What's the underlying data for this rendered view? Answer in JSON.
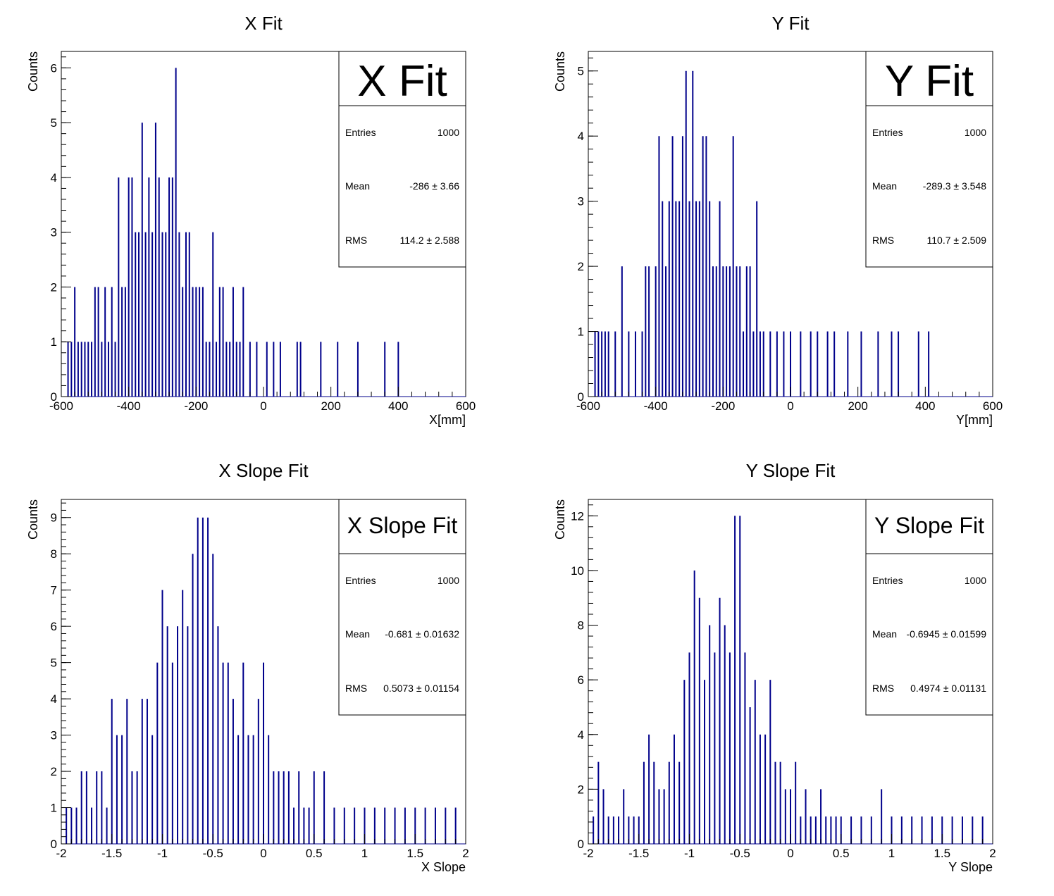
{
  "colors": {
    "histogram": "#00008b",
    "frame": "#000000",
    "background": "#ffffff"
  },
  "chart_data": [
    {
      "type": "bar",
      "title": "X Fit",
      "xlabel": "X[mm]",
      "ylabel": "Counts",
      "xlim": [
        -600,
        600
      ],
      "ylim": [
        0,
        6.3
      ],
      "xticks": [
        -600,
        -400,
        -200,
        0,
        200,
        400,
        600
      ],
      "yticks": [
        0,
        1,
        2,
        3,
        4,
        5,
        6
      ],
      "stats": {
        "name": "X Fit",
        "entries": "1000",
        "mean": "-286",
        "mean_err": "3.66",
        "rms": "114.2",
        "rms_err": "2.588"
      },
      "x": [
        -580,
        -570,
        -560,
        -550,
        -540,
        -530,
        -520,
        -510,
        -500,
        -490,
        -480,
        -470,
        -460,
        -450,
        -440,
        -430,
        -420,
        -410,
        -400,
        -390,
        -380,
        -370,
        -360,
        -350,
        -340,
        -330,
        -320,
        -310,
        -300,
        -290,
        -280,
        -270,
        -260,
        -250,
        -240,
        -230,
        -220,
        -210,
        -200,
        -190,
        -180,
        -170,
        -160,
        -150,
        -140,
        -130,
        -120,
        -110,
        -100,
        -90,
        -80,
        -70,
        -60,
        -40,
        -20,
        10,
        30,
        50,
        100,
        110,
        170,
        220,
        280,
        360,
        400
      ],
      "values": [
        1,
        1,
        2,
        1,
        1,
        1,
        1,
        1,
        2,
        2,
        1,
        2,
        1,
        2,
        1,
        4,
        2,
        2,
        4,
        4,
        3,
        3,
        5,
        3,
        4,
        3,
        5,
        4,
        3,
        3,
        4,
        4,
        6,
        3,
        2,
        3,
        3,
        2,
        2,
        2,
        2,
        1,
        1,
        3,
        1,
        2,
        2,
        1,
        1,
        2,
        1,
        1,
        2,
        1,
        1,
        1,
        1,
        1,
        1,
        1,
        1,
        1,
        1,
        1,
        1
      ]
    },
    {
      "type": "bar",
      "title": "Y Fit",
      "xlabel": "Y[mm]",
      "ylabel": "Counts",
      "xlim": [
        -600,
        600
      ],
      "ylim": [
        0,
        5.3
      ],
      "xticks": [
        -600,
        -400,
        -200,
        0,
        200,
        400,
        600
      ],
      "yticks": [
        0,
        1,
        2,
        3,
        4,
        5
      ],
      "stats": {
        "name": "Y Fit",
        "entries": "1000",
        "mean": "-289.3",
        "mean_err": "3.548",
        "rms": "110.7",
        "rms_err": "2.509"
      },
      "x": [
        -580,
        -570,
        -560,
        -550,
        -540,
        -520,
        -500,
        -480,
        -460,
        -440,
        -430,
        -420,
        -400,
        -390,
        -380,
        -370,
        -360,
        -350,
        -340,
        -330,
        -320,
        -310,
        -300,
        -290,
        -280,
        -270,
        -260,
        -250,
        -240,
        -230,
        -220,
        -210,
        -200,
        -190,
        -180,
        -170,
        -160,
        -150,
        -140,
        -130,
        -120,
        -110,
        -100,
        -90,
        -80,
        -60,
        -40,
        -20,
        0,
        30,
        60,
        80,
        110,
        130,
        170,
        210,
        260,
        300,
        320,
        380,
        410
      ],
      "values": [
        1,
        1,
        1,
        1,
        1,
        1,
        2,
        1,
        1,
        1,
        2,
        2,
        2,
        4,
        3,
        2,
        3,
        4,
        3,
        3,
        4,
        5,
        3,
        5,
        3,
        3,
        4,
        4,
        3,
        2,
        2,
        3,
        2,
        2,
        2,
        4,
        2,
        2,
        1,
        2,
        2,
        1,
        3,
        1,
        1,
        1,
        1,
        1,
        1,
        1,
        1,
        1,
        1,
        1,
        1,
        1,
        1,
        1,
        1,
        1,
        1
      ]
    },
    {
      "type": "bar",
      "title": "X Slope Fit",
      "xlabel": "X Slope",
      "ylabel": "Counts",
      "xlim": [
        -2,
        2
      ],
      "ylim": [
        0,
        9.5
      ],
      "xticks": [
        -2,
        -1.5,
        -1,
        -0.5,
        0,
        0.5,
        1,
        1.5,
        2
      ],
      "yticks": [
        0,
        1,
        2,
        3,
        4,
        5,
        6,
        7,
        8,
        9
      ],
      "stats": {
        "name": "X Slope Fit",
        "entries": "1000",
        "mean": "-0.681",
        "mean_err": "0.01632",
        "rms": "0.5073",
        "rms_err": "0.01154"
      },
      "x": [
        -1.95,
        -1.9,
        -1.85,
        -1.8,
        -1.75,
        -1.7,
        -1.65,
        -1.6,
        -1.55,
        -1.5,
        -1.45,
        -1.4,
        -1.35,
        -1.3,
        -1.25,
        -1.2,
        -1.15,
        -1.1,
        -1.05,
        -1.0,
        -0.95,
        -0.9,
        -0.85,
        -0.8,
        -0.75,
        -0.7,
        -0.65,
        -0.6,
        -0.55,
        -0.5,
        -0.45,
        -0.4,
        -0.35,
        -0.3,
        -0.25,
        -0.2,
        -0.15,
        -0.1,
        -0.05,
        0.0,
        0.05,
        0.1,
        0.15,
        0.2,
        0.25,
        0.3,
        0.35,
        0.4,
        0.45,
        0.5,
        0.6,
        0.7,
        0.8,
        0.9,
        1.0,
        1.1,
        1.2,
        1.3,
        1.4,
        1.5,
        1.6,
        1.7,
        1.8,
        1.9
      ],
      "values": [
        1,
        1,
        1,
        2,
        2,
        1,
        2,
        2,
        1,
        4,
        3,
        3,
        4,
        2,
        2,
        4,
        4,
        3,
        5,
        7,
        6,
        5,
        6,
        7,
        6,
        8,
        9,
        9,
        9,
        8,
        6,
        5,
        5,
        4,
        3,
        5,
        3,
        3,
        4,
        5,
        3,
        2,
        2,
        2,
        2,
        1,
        2,
        1,
        1,
        2,
        2,
        1,
        1,
        1,
        1,
        1,
        1,
        1,
        1,
        1,
        1,
        1,
        1,
        1
      ]
    },
    {
      "type": "bar",
      "title": "Y Slope Fit",
      "xlabel": "Y Slope",
      "ylabel": "Counts",
      "xlim": [
        -2,
        2
      ],
      "ylim": [
        0,
        12.6
      ],
      "xticks": [
        -2,
        -1.5,
        -1,
        -0.5,
        0,
        0.5,
        1,
        1.5,
        2
      ],
      "yticks": [
        0,
        2,
        4,
        6,
        8,
        10,
        12
      ],
      "stats": {
        "name": "Y Slope Fit",
        "entries": "1000",
        "mean": "-0.6945",
        "mean_err": "0.01599",
        "rms": "0.4974",
        "rms_err": "0.01131"
      },
      "x": [
        -1.95,
        -1.9,
        -1.85,
        -1.8,
        -1.75,
        -1.7,
        -1.65,
        -1.6,
        -1.55,
        -1.5,
        -1.45,
        -1.4,
        -1.35,
        -1.3,
        -1.25,
        -1.2,
        -1.15,
        -1.1,
        -1.05,
        -1.0,
        -0.95,
        -0.9,
        -0.85,
        -0.8,
        -0.75,
        -0.7,
        -0.65,
        -0.6,
        -0.55,
        -0.5,
        -0.45,
        -0.4,
        -0.35,
        -0.3,
        -0.25,
        -0.2,
        -0.15,
        -0.1,
        -0.05,
        0.0,
        0.05,
        0.1,
        0.15,
        0.2,
        0.25,
        0.3,
        0.35,
        0.4,
        0.45,
        0.5,
        0.6,
        0.7,
        0.8,
        0.9,
        1.0,
        1.1,
        1.2,
        1.3,
        1.4,
        1.5,
        1.6,
        1.7,
        1.8,
        1.9
      ],
      "values": [
        1,
        3,
        2,
        1,
        1,
        1,
        2,
        1,
        1,
        1,
        3,
        4,
        3,
        2,
        2,
        3,
        4,
        3,
        6,
        7,
        10,
        9,
        6,
        8,
        7,
        9,
        8,
        7,
        12,
        12,
        7,
        5,
        6,
        4,
        4,
        6,
        3,
        3,
        2,
        2,
        3,
        1,
        2,
        1,
        1,
        2,
        1,
        1,
        1,
        1,
        1,
        1,
        1,
        2,
        1,
        1,
        1,
        1,
        1,
        1,
        1,
        1,
        1,
        1
      ]
    }
  ]
}
